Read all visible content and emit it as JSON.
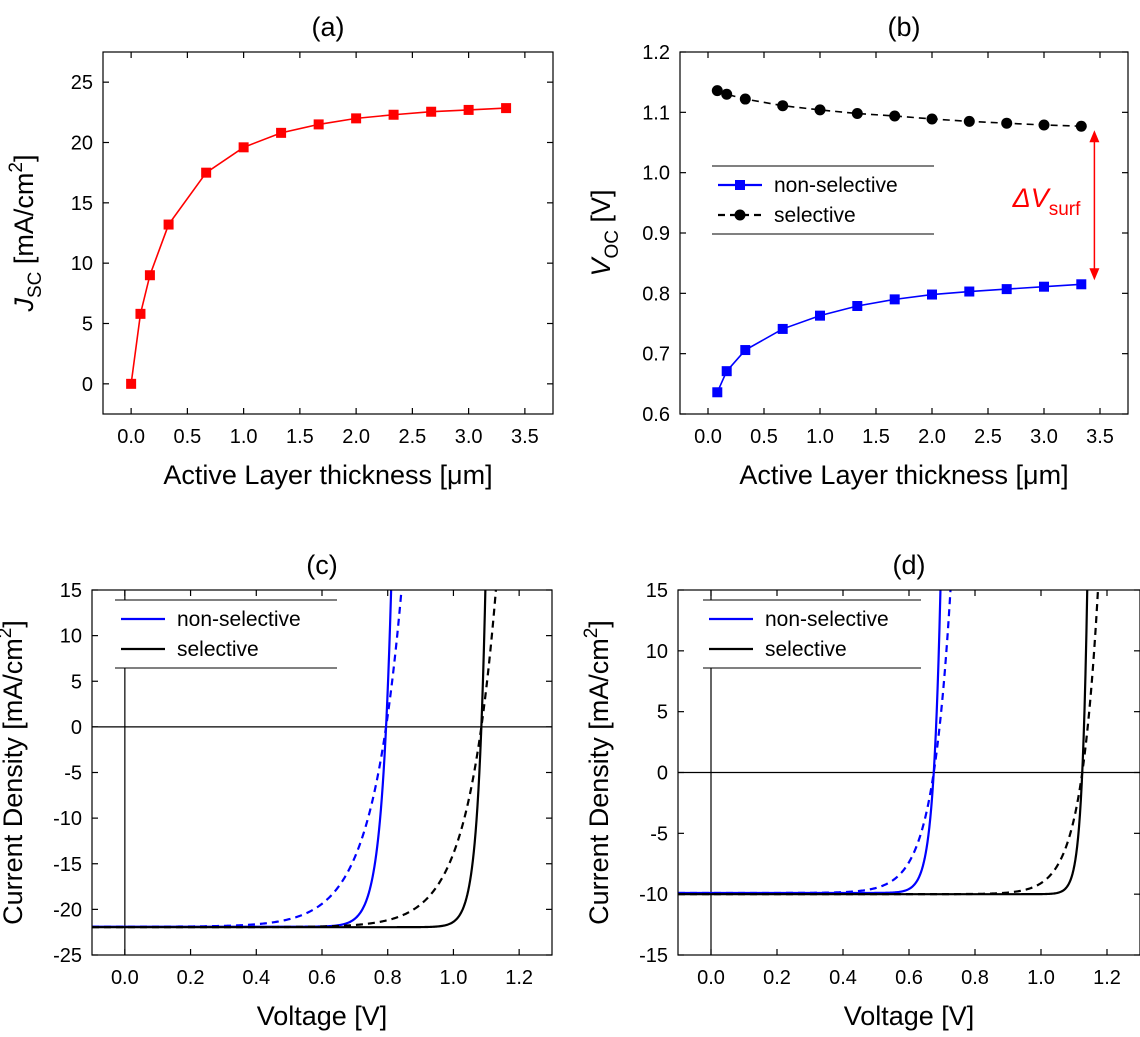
{
  "chart_data": [
    {
      "panel": "a",
      "type": "line",
      "title": "(a)",
      "xlabel": "Active Layer thickness [μm]",
      "ylabel": {
        "main": "J",
        "sub": "SC",
        "rest": " [mA/cm",
        "sup": "2",
        "end": "]"
      },
      "xlim": [
        -0.25,
        3.75
      ],
      "ylim": [
        -2.5,
        27.5
      ],
      "xticks": [
        0.0,
        0.5,
        1.0,
        1.5,
        2.0,
        2.5,
        3.0,
        3.5
      ],
      "xtick_labels": [
        "0.0",
        "0.5",
        "1.0",
        "1.5",
        "2.0",
        "2.5",
        "3.0",
        "3.5"
      ],
      "yticks": [
        0,
        5,
        10,
        15,
        20,
        25
      ],
      "ytick_labels": [
        "0",
        "5",
        "10",
        "15",
        "20",
        "25"
      ],
      "grid": false,
      "series": [
        {
          "color": "#ff0000",
          "marker": "square",
          "line": "solid",
          "x": [
            0.0,
            0.083,
            0.167,
            0.333,
            0.667,
            1.0,
            1.333,
            1.667,
            2.0,
            2.333,
            2.667,
            3.0,
            3.333
          ],
          "y": [
            0.0,
            5.8,
            9.0,
            13.2,
            17.5,
            19.6,
            20.8,
            21.5,
            22.0,
            22.3,
            22.55,
            22.7,
            22.85
          ]
        }
      ]
    },
    {
      "panel": "b",
      "type": "line",
      "title": "(b)",
      "xlabel": "Active Layer thickness [μm]",
      "ylabel": {
        "main": "V",
        "sub": "OC",
        "rest": " [V]",
        "sup": "",
        "end": ""
      },
      "xlim": [
        -0.25,
        3.75
      ],
      "ylim": [
        0.6,
        1.2
      ],
      "xticks": [
        0.0,
        0.5,
        1.0,
        1.5,
        2.0,
        2.5,
        3.0,
        3.5
      ],
      "xtick_labels": [
        "0.0",
        "0.5",
        "1.0",
        "1.5",
        "2.0",
        "2.5",
        "3.0",
        "3.5"
      ],
      "yticks": [
        0.6,
        0.7,
        0.8,
        0.9,
        1.0,
        1.1,
        1.2
      ],
      "ytick_labels": [
        "0.6",
        "0.7",
        "0.8",
        "0.9",
        "1.0",
        "1.1",
        "1.2"
      ],
      "grid": false,
      "legend": {
        "position": "middle-left",
        "entries": [
          "non-selective",
          "selective"
        ]
      },
      "annotation": {
        "text_main": "ΔV",
        "text_sub": "surf",
        "color": "#ff0000",
        "x": 3.45,
        "y_from": 1.077,
        "y_to": 0.815
      },
      "series": [
        {
          "name": "non-selective",
          "color": "#0000ff",
          "marker": "square",
          "line": "solid",
          "x": [
            0.083,
            0.167,
            0.333,
            0.667,
            1.0,
            1.333,
            1.667,
            2.0,
            2.333,
            2.667,
            3.0,
            3.333
          ],
          "y": [
            0.636,
            0.671,
            0.706,
            0.741,
            0.763,
            0.779,
            0.79,
            0.798,
            0.803,
            0.807,
            0.811,
            0.815
          ]
        },
        {
          "name": "selective",
          "color": "#000000",
          "marker": "circle",
          "line": "dash",
          "x": [
            0.083,
            0.167,
            0.333,
            0.667,
            1.0,
            1.333,
            1.667,
            2.0,
            2.333,
            2.667,
            3.0,
            3.333
          ],
          "y": [
            1.136,
            1.13,
            1.122,
            1.111,
            1.104,
            1.098,
            1.094,
            1.089,
            1.085,
            1.082,
            1.079,
            1.077
          ]
        }
      ]
    },
    {
      "panel": "c",
      "type": "line",
      "title": "(c)",
      "xlabel": "Voltage [V]",
      "ylabel": {
        "main": "Current Density [mA/cm",
        "sub": "",
        "rest": "",
        "sup": "2",
        "end": "]"
      },
      "xlim": [
        -0.1,
        1.3
      ],
      "ylim": [
        -25,
        15
      ],
      "xticks": [
        0.0,
        0.2,
        0.4,
        0.6,
        0.8,
        1.0,
        1.2
      ],
      "xtick_labels": [
        "0.0",
        "0.2",
        "0.4",
        "0.6",
        "0.8",
        "1.0",
        "1.2"
      ],
      "yticks": [
        -25,
        -20,
        -15,
        -10,
        -5,
        0,
        5,
        10,
        15
      ],
      "ytick_labels": [
        "-25",
        "-20",
        "-15",
        "-10",
        "-5",
        "0",
        "5",
        "10",
        "15"
      ],
      "grid": false,
      "zero_lines": true,
      "legend": {
        "position": "top-left",
        "entries": [
          "non-selective",
          "selective"
        ]
      },
      "series": [
        {
          "name": "non-selective",
          "color": "#0000ff",
          "line": "solid",
          "jsc": -21.9,
          "voc": 0.795,
          "vt": 0.0295
        },
        {
          "name": "",
          "color": "#0000ff",
          "line": "dash",
          "jsc": -21.9,
          "voc": 0.795,
          "vt": 0.09
        },
        {
          "name": "selective",
          "color": "#000000",
          "line": "solid",
          "jsc": -21.95,
          "voc": 1.085,
          "vt": 0.0235
        },
        {
          "name": "",
          "color": "#000000",
          "line": "dash",
          "jsc": -21.95,
          "voc": 1.085,
          "vt": 0.085
        }
      ]
    },
    {
      "panel": "d",
      "type": "line",
      "title": "(d)",
      "xlabel": "Voltage [V]",
      "ylabel": {
        "main": "Current Density [mA/cm",
        "sub": "",
        "rest": "",
        "sup": "2",
        "end": "]"
      },
      "xlim": [
        -0.1,
        1.3
      ],
      "ylim": [
        -15,
        15
      ],
      "xticks": [
        0.0,
        0.2,
        0.4,
        0.6,
        0.8,
        1.0,
        1.2
      ],
      "xtick_labels": [
        "0.0",
        "0.2",
        "0.4",
        "0.6",
        "0.8",
        "1.0",
        "1.2"
      ],
      "yticks": [
        -15,
        -10,
        -5,
        0,
        5,
        10,
        15
      ],
      "ytick_labels": [
        "-15",
        "-10",
        "-5",
        "0",
        "5",
        "10",
        "15"
      ],
      "grid": false,
      "zero_lines": true,
      "legend": {
        "position": "top-left",
        "entries": [
          "non-selective",
          "selective"
        ]
      },
      "series": [
        {
          "name": "non-selective",
          "color": "#0000ff",
          "line": "solid",
          "jsc": -9.9,
          "voc": 0.675,
          "vt": 0.022
        },
        {
          "name": "",
          "color": "#0000ff",
          "line": "dash",
          "jsc": -9.9,
          "voc": 0.675,
          "vt": 0.055
        },
        {
          "name": "selective",
          "color": "#000000",
          "line": "solid",
          "jsc": -10.0,
          "voc": 1.125,
          "vt": 0.0165
        },
        {
          "name": "",
          "color": "#000000",
          "line": "dash",
          "jsc": -10.0,
          "voc": 1.125,
          "vt": 0.052
        }
      ]
    }
  ]
}
